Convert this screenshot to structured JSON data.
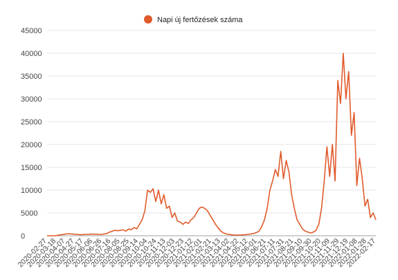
{
  "chart_data": {
    "type": "line",
    "legend": "top-center",
    "grid": true,
    "ylim": [
      0,
      45000
    ],
    "y_ticks": [
      0,
      5000,
      10000,
      15000,
      20000,
      25000,
      30000,
      35000,
      40000,
      45000
    ],
    "x_ticks": [
      "2020-02-27",
      "2020-03-18",
      "2020-04-07",
      "2020-04-27",
      "2020-05-17",
      "2020-06-06",
      "2020-06-26",
      "2020-07-16",
      "2020-08-05",
      "2020-08-25",
      "2020-09-14",
      "2020-10-04",
      "2020-10-24",
      "2020-11-13",
      "2020-12-03",
      "2020-12-23",
      "2021-01-12",
      "2021-02-01",
      "2021-02-21",
      "2021-03-13",
      "2021-04-02",
      "2021-04-22",
      "2021-05-12",
      "2021-06-01",
      "2021-06-21",
      "2021-07-11",
      "2021-07-31",
      "2021-08-21",
      "2021-09-10",
      "2021-09-30",
      "2021-10-20",
      "2021-11-09",
      "2021-11-29",
      "2021-12-19",
      "2022-01-08",
      "2022-01-28",
      "2022-02-17"
    ],
    "series": [
      {
        "name": "Napi új fertőzések száma",
        "color": "#e05a2b",
        "values": [
          0,
          0,
          0,
          0,
          100,
          200,
          300,
          400,
          450,
          400,
          350,
          300,
          250,
          250,
          300,
          300,
          350,
          350,
          350,
          300,
          300,
          400,
          500,
          800,
          1000,
          1200,
          1100,
          1200,
          1300,
          1000,
          1500,
          1300,
          1800,
          1500,
          2500,
          3500,
          5500,
          10000,
          9500,
          10300,
          7500,
          10000,
          7000,
          9000,
          6000,
          6500,
          4000,
          5000,
          3200,
          3000,
          2500,
          3000,
          2700,
          3500,
          4000,
          5000,
          6000,
          6300,
          6000,
          5500,
          4500,
          3500,
          2500,
          1700,
          1000,
          600,
          400,
          300,
          200,
          150,
          150,
          150,
          200,
          250,
          300,
          400,
          500,
          700,
          1000,
          2000,
          3500,
          6000,
          10000,
          12000,
          14500,
          13000,
          18500,
          12500,
          16500,
          14000,
          9000,
          6000,
          3500,
          2500,
          1500,
          1000,
          800,
          600,
          800,
          1200,
          2500,
          6000,
          12000,
          19500,
          13000,
          20000,
          12000,
          34000,
          29000,
          40000,
          30000,
          36000,
          22000,
          27000,
          11000,
          17000,
          12500,
          6500,
          8000,
          4000,
          5000,
          3500
        ]
      }
    ]
  }
}
